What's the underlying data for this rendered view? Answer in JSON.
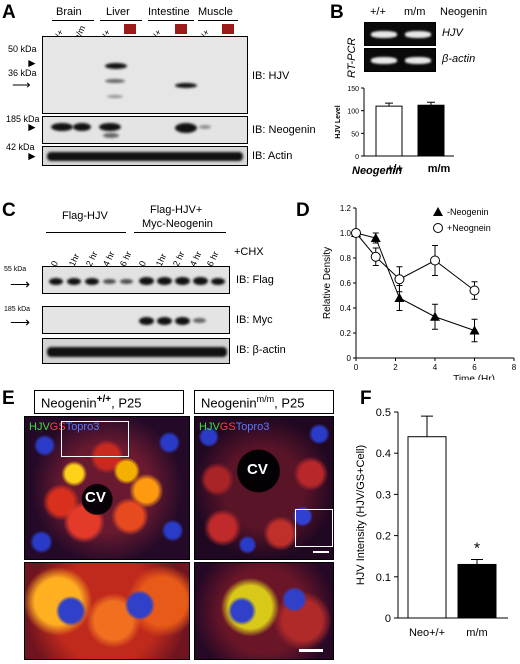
{
  "panelA": {
    "label": "A",
    "groups": [
      "Brain",
      "Liver",
      "Intestine",
      "Muscle"
    ],
    "lanes": [
      "+/+",
      "m/m",
      "+/+",
      "m/m",
      "+/+",
      "m/m",
      "+/+",
      "m/m"
    ],
    "markers": [
      "50 kDa",
      "36 kDa",
      "185 kDa",
      "42 kDa"
    ],
    "blots": [
      "IB: HJV",
      "IB: Neogenin",
      "IB: Actin"
    ]
  },
  "panelB": {
    "label": "B",
    "genotypes": [
      "+/+",
      "m/m"
    ],
    "gene_label": "Neogenin",
    "side_label": "RT-PCR",
    "genes": [
      "HJV",
      "β-actin"
    ],
    "bar_axis": "HJV Level",
    "x_title": "Neogenin",
    "ticks": [
      "0",
      "50",
      "100",
      "150"
    ]
  },
  "panelC": {
    "label": "C",
    "group1": "Flag-HJV",
    "group2_line1": "Flag-HJV+",
    "group2_line2": "Myc-Neogenin",
    "times": [
      "0",
      "1hr",
      "2 hr",
      "4 hr",
      "6 hr",
      "0",
      "1hr",
      "2 hr",
      "4 hr",
      "6 hr"
    ],
    "cond": "+CHX",
    "markers": [
      "55 kDa",
      "185 kDa"
    ],
    "blots": [
      "IB: Flag",
      "IB: Myc",
      "IB: β-actin"
    ]
  },
  "panelE": {
    "label": "E",
    "title_left": "Neogenin",
    "sup_left": "+/+",
    "suffix_left": ", P25",
    "title_right": "Neogenin",
    "sup_right": "m/m",
    "suffix_right": ", P25",
    "stain_hjv": "HJV",
    "stain_gs": "GS",
    "stain_topro": "Topro3",
    "cv": "CV"
  },
  "panelD": {
    "label": "D",
    "legend1": "-Neogenin",
    "legend2": "+Neognein"
  },
  "panelF": {
    "label": "F",
    "star": "*"
  },
  "chart_data": [
    {
      "type": "bar",
      "panel": "B",
      "categories": [
        "+/+",
        "m/m"
      ],
      "values": [
        110,
        112
      ],
      "ylabel": "HJV Level",
      "xlabel": "Neogenin",
      "ylim": [
        0,
        150
      ],
      "colors": [
        "#ffffff",
        "#000000"
      ]
    },
    {
      "type": "line",
      "panel": "D",
      "xlabel": "Time (Hr)",
      "ylabel": "Relative Density",
      "xlim": [
        0,
        8
      ],
      "ylim": [
        0,
        1.2
      ],
      "xticks": [
        "0",
        "2",
        "4",
        "6",
        "8"
      ],
      "yticks": [
        "0",
        "0.2",
        "0.4",
        "0.6",
        "0.8",
        "1.0",
        "1.2"
      ],
      "legend": "top-right",
      "series": [
        {
          "name": "-Neogenin",
          "marker": "triangle",
          "x": [
            0,
            1,
            2.2,
            4,
            6
          ],
          "y": [
            1.0,
            0.96,
            0.48,
            0.33,
            0.22
          ],
          "err": [
            0.02,
            0.04,
            0.1,
            0.1,
            0.09
          ]
        },
        {
          "name": "+Neognein",
          "marker": "circle",
          "x": [
            0,
            1,
            2.2,
            4,
            6
          ],
          "y": [
            1.0,
            0.81,
            0.63,
            0.78,
            0.54
          ],
          "err": [
            0.02,
            0.07,
            0.1,
            0.12,
            0.07
          ]
        }
      ]
    },
    {
      "type": "bar",
      "panel": "F",
      "categories": [
        "Neo+/+",
        "m/m"
      ],
      "values": [
        0.44,
        0.13
      ],
      "err": [
        0.05,
        0.012
      ],
      "ylabel": "HJV Intensity (HJV/GS+Cell)",
      "ylim": [
        0,
        0.5
      ],
      "yticks": [
        "0",
        "0.1",
        "0.2",
        "0.3",
        "0.4",
        "0.5"
      ],
      "colors": [
        "#ffffff",
        "#000000"
      ]
    }
  ]
}
